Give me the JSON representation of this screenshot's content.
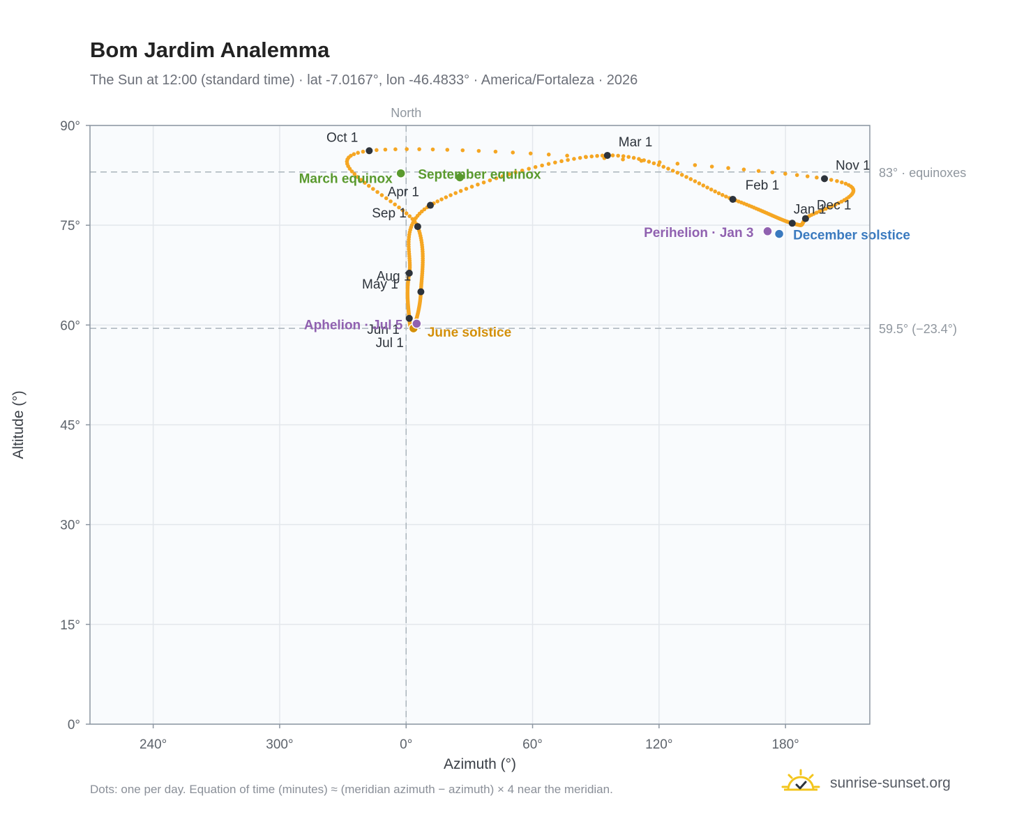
{
  "title": "Bom Jardim Analemma",
  "subtitle": "The Sun at 12:00 (standard time) · lat -7.0167°, lon -46.4833° · America/Fortaleza · 2026",
  "footnote": "Dots: one per day. Equation of time (minutes) ≈ (meridian azimuth − azimuth) × 4 near the meridian.",
  "brand": {
    "name": "sunrise-sunset.org",
    "icon": "sun-logo-icon"
  },
  "colors": {
    "path": "#f5a623",
    "month_dot": "#2d333b",
    "equinox": "#5a9a2e",
    "june_solstice": "#d4900a",
    "december_solstice": "#3a7abf",
    "apsis": "#9061b0",
    "reference": "#a9b4bb",
    "plot_bg": "#f9fbfd"
  },
  "chart_data": {
    "type": "scatter",
    "title": "Bom Jardim Analemma",
    "xlabel": "Azimuth (°)",
    "ylabel": "Altitude (°)",
    "xlim": [
      210,
      220
    ],
    "x_axis_note": "azimuth wraps through 0° (North); axis runs 210° → 360°/0° → 220°",
    "ylim": [
      0,
      90
    ],
    "x_ticks": [
      "240°",
      "300°",
      "0°",
      "60°",
      "120°",
      "180°"
    ],
    "y_ticks": [
      "0°",
      "15°",
      "30°",
      "45°",
      "60°",
      "75°",
      "90°"
    ],
    "grid": true,
    "north_label": "North",
    "north_azimuth": 0,
    "reference_lines": [
      {
        "altitude": 83,
        "label": "83° · equinoxes"
      },
      {
        "altitude": 59.5,
        "label": "59.5° (−23.4°)"
      }
    ],
    "series": [
      {
        "name": "Dots: one per day",
        "count": 365
      }
    ],
    "month_markers": [
      {
        "label": "Jan 1",
        "az": 183.2,
        "alt": 75.3
      },
      {
        "label": "Feb 1",
        "az": 155.0,
        "alt": 78.9
      },
      {
        "label": "Mar 1",
        "az": 95.5,
        "alt": 85.5
      },
      {
        "label": "Apr 1",
        "az": 11.5,
        "alt": 78.0
      },
      {
        "label": "May 1",
        "az": 1.5,
        "alt": 67.8
      },
      {
        "label": "Jun 1",
        "az": 1.5,
        "alt": 61.0
      },
      {
        "label": "Jul 1",
        "az": 3.5,
        "alt": 59.6
      },
      {
        "label": "Aug 1",
        "az": 7.0,
        "alt": 65.0
      },
      {
        "label": "Sep 1",
        "az": 5.5,
        "alt": 74.8
      },
      {
        "label": "Oct 1",
        "az": 342.5,
        "alt": 86.2
      },
      {
        "label": "Nov 1",
        "az": 198.5,
        "alt": 82.0
      },
      {
        "label": "Dec 1",
        "az": 189.5,
        "alt": 76.0
      }
    ],
    "events": [
      {
        "label": "March equinox",
        "az": 357.5,
        "alt": 82.8,
        "kind": "equinox"
      },
      {
        "label": "September equinox",
        "az": 25.5,
        "alt": 82.2,
        "kind": "equinox"
      },
      {
        "label": "June solstice",
        "az": 3.5,
        "alt": 59.5,
        "kind": "june_solstice"
      },
      {
        "label": "December solstice",
        "az": 177.0,
        "alt": 73.7,
        "kind": "december_solstice"
      },
      {
        "label": "Perihelion · Jan 3",
        "az": 171.5,
        "alt": 74.1,
        "kind": "apsis"
      },
      {
        "label": "Aphelion · Jul 5",
        "az": 5.0,
        "alt": 60.2,
        "kind": "apsis"
      }
    ]
  }
}
